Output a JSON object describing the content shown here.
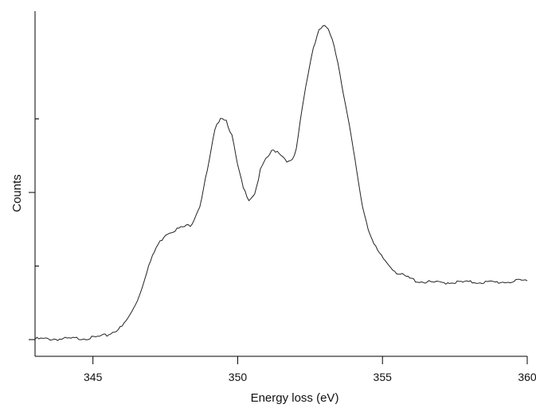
{
  "chart_data": {
    "type": "line",
    "title": "",
    "xlabel": "Energy loss (eV)",
    "ylabel": "Counts",
    "xlim": [
      343,
      360
    ],
    "ylim": [
      0,
      10
    ],
    "x_ticks": [
      345,
      350,
      355,
      360
    ],
    "x_tick_labels": [
      "345",
      "350",
      "355",
      "360"
    ],
    "y_ticks": [
      0,
      2.5,
      5,
      7.5
    ],
    "y_major_ticks": [
      0,
      5
    ],
    "y_tick_labels": [],
    "grid": false,
    "legend": "none",
    "series": [
      {
        "x": [
          343.0,
          344.0,
          345.0,
          345.5,
          346.0,
          346.3,
          346.6,
          346.9,
          347.2,
          347.5,
          347.8,
          348.1,
          348.4,
          348.7,
          349.0,
          349.2,
          349.4,
          349.6,
          349.8,
          350.0,
          350.2,
          350.4,
          350.6,
          350.8,
          351.0,
          351.2,
          351.4,
          351.6,
          351.8,
          352.0,
          352.2,
          352.4,
          352.6,
          352.8,
          352.95,
          353.1,
          353.3,
          353.5,
          353.7,
          353.9,
          354.1,
          354.3,
          354.5,
          354.7,
          354.9,
          355.2,
          355.5,
          355.8,
          356.2,
          356.6,
          357.0,
          357.5,
          358.0,
          358.5,
          359.0,
          359.5,
          360.0
        ],
        "y": [
          0.02,
          0.02,
          0.06,
          0.15,
          0.43,
          0.86,
          1.49,
          2.45,
          3.16,
          3.58,
          3.72,
          3.82,
          3.91,
          4.57,
          5.98,
          7.06,
          7.58,
          7.47,
          6.93,
          5.9,
          5.11,
          4.76,
          4.99,
          5.82,
          6.15,
          6.43,
          6.4,
          6.18,
          6.0,
          6.27,
          7.71,
          8.91,
          9.88,
          10.47,
          10.67,
          10.56,
          10.16,
          9.22,
          8.1,
          7.0,
          5.79,
          4.57,
          3.81,
          3.24,
          2.9,
          2.56,
          2.27,
          2.14,
          1.98,
          1.95,
          1.93,
          1.95,
          1.95,
          1.95,
          1.95,
          1.97,
          2.02
        ]
      }
    ]
  }
}
